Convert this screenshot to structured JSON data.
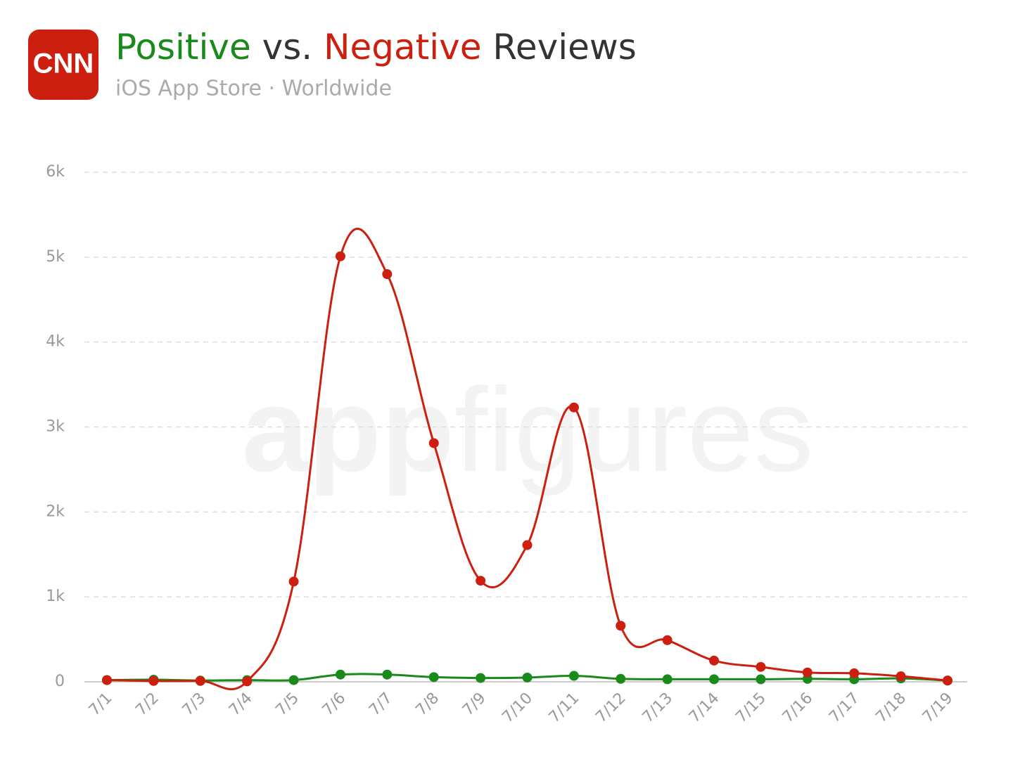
{
  "logo_text": "CNN",
  "chart_data": {
    "type": "line",
    "title_joiner": "vs.",
    "title_suffix": "Reviews",
    "subtitle": "iOS App Store · Worldwide",
    "watermark": [
      "app",
      "figures"
    ],
    "categories": [
      "7/1",
      "7/2",
      "7/3",
      "7/4",
      "7/5",
      "7/6",
      "7/7",
      "7/8",
      "7/9",
      "7/10",
      "7/11",
      "7/12",
      "7/13",
      "7/14",
      "7/15",
      "7/16",
      "7/17",
      "7/18",
      "7/19"
    ],
    "series": [
      {
        "name": "Positive",
        "color": "#1a8a1a",
        "values": [
          20,
          25,
          15,
          20,
          20,
          85,
          85,
          55,
          45,
          50,
          70,
          35,
          30,
          30,
          30,
          35,
          30,
          40,
          15
        ]
      },
      {
        "name": "Negative",
        "color": "#cc1f10",
        "values": [
          20,
          10,
          10,
          5,
          1180,
          5010,
          4800,
          2810,
          1190,
          1610,
          3230,
          660,
          490,
          250,
          175,
          110,
          100,
          65,
          15
        ]
      }
    ],
    "ylim": [
      0,
      6000
    ],
    "yticks": [
      0,
      {
        "value": 1000,
        "label": "1k"
      },
      {
        "value": 2000,
        "label": "2k"
      },
      {
        "value": 3000,
        "label": "3k"
      },
      {
        "value": 4000,
        "label": "4k"
      },
      {
        "value": 5000,
        "label": "5k"
      },
      {
        "value": 6000,
        "label": "6k"
      }
    ],
    "grid": true
  }
}
